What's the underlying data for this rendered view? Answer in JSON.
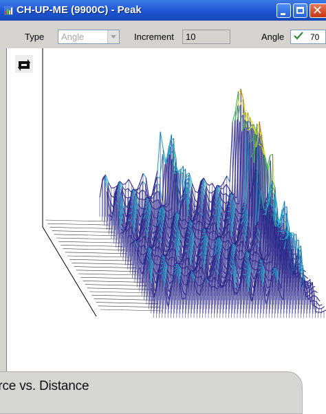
{
  "window": {
    "title": "CH-UP-ME (9900C) - Peak",
    "icon": "chart-app-icon"
  },
  "toolbar": {
    "type_label": "Type",
    "type_value": "Angle",
    "increment_label": "Increment",
    "increment_value": "10",
    "angle_label": "Angle",
    "angle_value": "70",
    "angle_check_icon": "check-icon"
  },
  "plot": {
    "rotate_icon": "rotate-icon",
    "colors": {
      "low": "#2e2a8c",
      "mid": "#1fa7c8",
      "green": "#3bb54a",
      "yellow": "#e8e21c",
      "orange": "#f39a1a",
      "high": "#d8141c"
    }
  },
  "status": {
    "text": "orce vs. Distance"
  }
}
